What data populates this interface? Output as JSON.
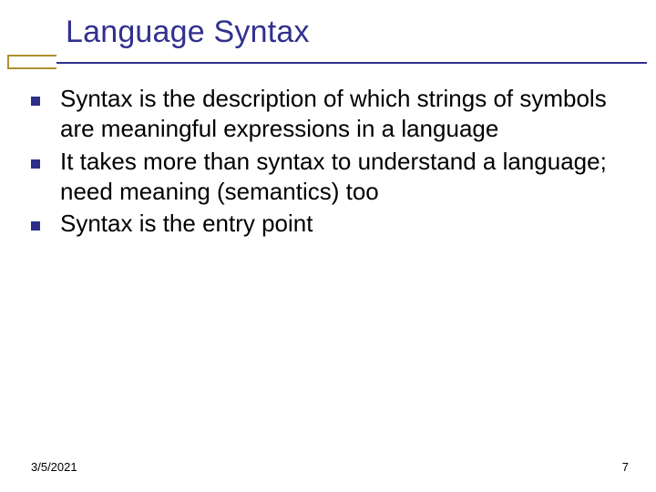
{
  "slide": {
    "title": "Language Syntax",
    "title_color": "#30308f",
    "title_fontsize": 34,
    "accent_color": "#b09030",
    "line_color": "#30308f",
    "bullets": [
      {
        "text": "Syntax is the description of which strings of symbols are meaningful expressions in a language"
      },
      {
        "text": "It takes more than syntax to understand a language; need meaning (semantics) too"
      },
      {
        "text": "Syntax is the entry point"
      }
    ],
    "bullet_marker_color": "#2e2e8a",
    "bullet_text_color": "#000000",
    "bullet_fontsize": 26,
    "background_color": "#ffffff"
  },
  "footer": {
    "date": "3/5/2021",
    "page": "7",
    "color": "#000000",
    "fontsize": 13
  }
}
